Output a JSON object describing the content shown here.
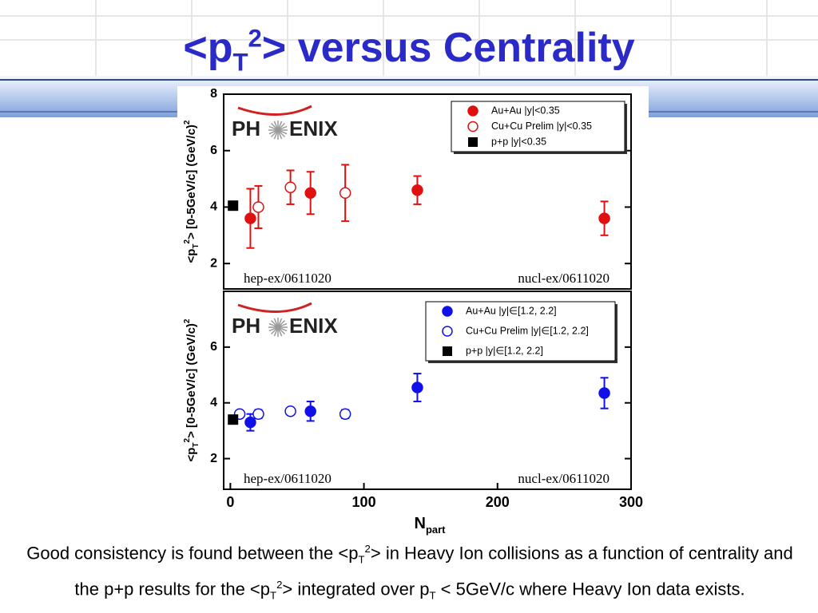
{
  "title_parts": [
    "<p",
    "T",
    "2",
    "> versus Centrality"
  ],
  "caption_parts": [
    "Good consistency is found between the <p",
    "T",
    "2",
    "> in Heavy Ion collisions as a function of centrality and the p+p results for the <p",
    "T",
    "2",
    "> integrated over p",
    "T",
    " < 5GeV/c where Heavy Ion data exists."
  ],
  "chart_data": [
    {
      "type": "scatter",
      "ylabel_parts": [
        "<p",
        "T",
        "2",
        "> [0-5GeV/c] (GeV/c)",
        "2"
      ],
      "logo": [
        "PH",
        "ENIX"
      ],
      "xlim": [
        -5,
        300
      ],
      "ylim": [
        1.1,
        8
      ],
      "yticks": [
        2,
        4,
        6,
        8
      ],
      "annotations": [
        "hep-ex/0611020",
        "nucl-ex/0611020"
      ],
      "series": [
        {
          "name": "Au+Au |y|<0.35",
          "color": "#e01010",
          "marker": "circle",
          "x": [
            15,
            60,
            140,
            280
          ],
          "values": [
            3.6,
            4.5,
            4.6,
            3.6
          ],
          "errors": [
            1.05,
            0.75,
            0.5,
            0.6
          ]
        },
        {
          "name": "Cu+Cu Prelim |y|<0.35",
          "color": "#e01010",
          "marker": "open-circle",
          "x": [
            21,
            45,
            86
          ],
          "values": [
            4.0,
            4.7,
            4.5
          ],
          "errors": [
            0.75,
            0.6,
            1.0
          ]
        },
        {
          "name": "p+p |y|<0.35",
          "color": "#000000",
          "marker": "square",
          "x": [
            2
          ],
          "values": [
            4.05
          ],
          "errors": [
            0.15
          ]
        }
      ]
    },
    {
      "type": "scatter",
      "ylabel_parts": [
        "<p",
        "T",
        "2",
        "> [0-5GeV/c] (GeV/c)",
        "2"
      ],
      "logo": [
        "PH",
        "ENIX"
      ],
      "xlabel_parts": [
        "N",
        "part"
      ],
      "xlim": [
        -5,
        300
      ],
      "xticks": [
        0,
        100,
        200,
        300
      ],
      "ylim": [
        0.9,
        8
      ],
      "yticks": [
        2,
        4,
        6
      ],
      "annotations": [
        "hep-ex/0611020",
        "nucl-ex/0611020"
      ],
      "series": [
        {
          "name": "Au+Au |y|∈[1.2, 2.2]",
          "color": "#1010e8",
          "marker": "circle",
          "x": [
            15,
            60,
            140,
            280
          ],
          "values": [
            3.3,
            3.7,
            4.55,
            4.35
          ],
          "errors": [
            0.3,
            0.35,
            0.5,
            0.55
          ]
        },
        {
          "name": "Cu+Cu Prelim |y|∈[1.2, 2.2]",
          "color": "#1010e8",
          "marker": "open-circle",
          "x": [
            7,
            21,
            45,
            86
          ],
          "values": [
            3.6,
            3.6,
            3.7,
            3.6
          ],
          "errors": [
            0.1,
            0.15,
            0.1,
            0.15
          ]
        },
        {
          "name": "p+p |y|∈[1.2, 2.2]",
          "color": "#000000",
          "marker": "square",
          "x": [
            2
          ],
          "values": [
            3.4
          ],
          "errors": [
            0.08
          ]
        }
      ]
    }
  ]
}
